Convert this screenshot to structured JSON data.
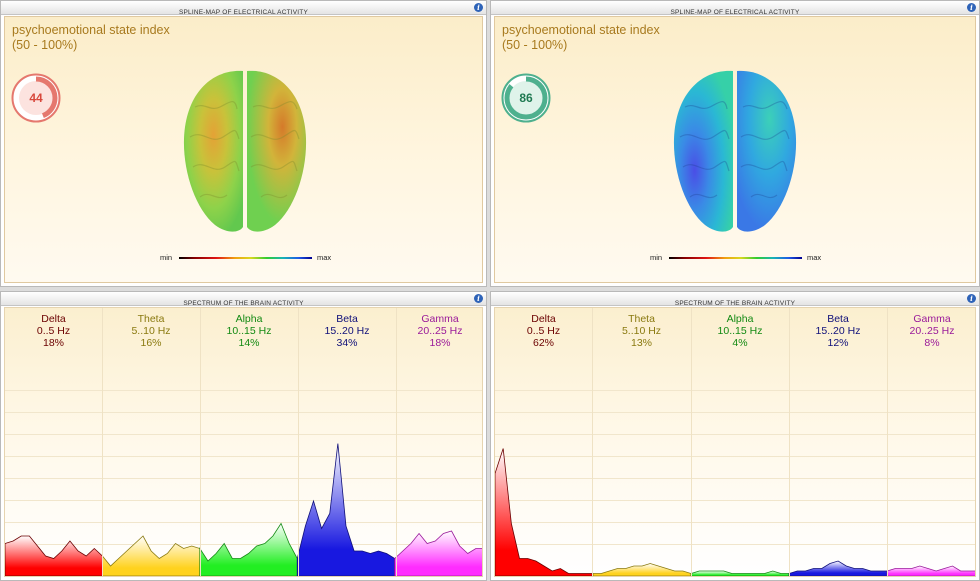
{
  "panels": [
    {
      "header": "SPLINE-MAP OF ELECTRICAL ACTIVITY",
      "title_line1": "psychoemotional state index",
      "title_line2": "(50 - 100%)",
      "gauge_value": "44",
      "gauge_fraction": 0.44,
      "gauge_color": "#e5786e",
      "legend_min": "min",
      "legend_max": "max"
    },
    {
      "header": "SPLINE-MAP OF ELECTRICAL ACTIVITY",
      "title_line1": "psychoemotional state index",
      "title_line2": "(50 - 100%)",
      "gauge_value": "86",
      "gauge_fraction": 0.86,
      "gauge_color": "#4eb08e",
      "legend_min": "min",
      "legend_max": "max"
    }
  ],
  "spectra": [
    {
      "header": "SPECTRUM OF THE BRAIN ACTIVITY",
      "bands": [
        {
          "name": "Delta",
          "range": "0..5 Hz",
          "pct": "18%",
          "color": "#6b0000"
        },
        {
          "name": "Theta",
          "range": "5..10 Hz",
          "pct": "16%",
          "color": "#8a7a10"
        },
        {
          "name": "Alpha",
          "range": "10..15 Hz",
          "pct": "14%",
          "color": "#138a13"
        },
        {
          "name": "Beta",
          "range": "15..20 Hz",
          "pct": "34%",
          "color": "#10107a"
        },
        {
          "name": "Gamma",
          "range": "20..25 Hz",
          "pct": "18%",
          "color": "#9a1a9a"
        }
      ]
    },
    {
      "header": "SPECTRUM OF THE BRAIN ACTIVITY",
      "bands": [
        {
          "name": "Delta",
          "range": "0..5 Hz",
          "pct": "62%",
          "color": "#6b0000"
        },
        {
          "name": "Theta",
          "range": "5..10 Hz",
          "pct": "13%",
          "color": "#8a7a10"
        },
        {
          "name": "Alpha",
          "range": "10..15 Hz",
          "pct": "4%",
          "color": "#138a13"
        },
        {
          "name": "Beta",
          "range": "15..20 Hz",
          "pct": "12%",
          "color": "#10107a"
        },
        {
          "name": "Gamma",
          "range": "20..25 Hz",
          "pct": "8%",
          "color": "#9a1a9a"
        }
      ]
    }
  ],
  "band_fill_colors": [
    "#ff0000",
    "#ffd21e",
    "#22ee22",
    "#1818e0",
    "#ff2cff"
  ],
  "spectrum_values": [
    [
      0.13,
      0.14,
      0.16,
      0.16,
      0.12,
      0.08,
      0.07,
      0.1,
      0.14,
      0.1,
      0.08,
      0.11,
      0.08,
      0.04,
      0.07,
      0.1,
      0.13,
      0.16,
      0.1,
      0.07,
      0.09,
      0.13,
      0.11,
      0.12,
      0.11,
      0.06,
      0.09,
      0.13,
      0.07,
      0.07,
      0.09,
      0.12,
      0.13,
      0.16,
      0.21,
      0.13,
      0.07,
      0.2,
      0.3,
      0.19,
      0.25,
      0.53,
      0.2,
      0.1,
      0.1,
      0.09,
      0.1,
      0.09,
      0.07,
      0.1,
      0.13,
      0.17,
      0.13,
      0.14,
      0.17,
      0.18,
      0.12,
      0.09,
      0.11,
      0.11
    ],
    [
      0.41,
      0.51,
      0.21,
      0.07,
      0.07,
      0.06,
      0.04,
      0.02,
      0.03,
      0.01,
      0.01,
      0.01,
      0.01,
      0.01,
      0.02,
      0.03,
      0.03,
      0.04,
      0.04,
      0.05,
      0.04,
      0.03,
      0.02,
      0.02,
      0.01,
      0.02,
      0.02,
      0.02,
      0.02,
      0.01,
      0.01,
      0.01,
      0.01,
      0.01,
      0.02,
      0.01,
      0.01,
      0.02,
      0.02,
      0.03,
      0.03,
      0.05,
      0.06,
      0.04,
      0.03,
      0.03,
      0.02,
      0.02,
      0.02,
      0.03,
      0.03,
      0.03,
      0.04,
      0.03,
      0.02,
      0.03,
      0.04,
      0.02,
      0.02,
      0.02
    ]
  ]
}
